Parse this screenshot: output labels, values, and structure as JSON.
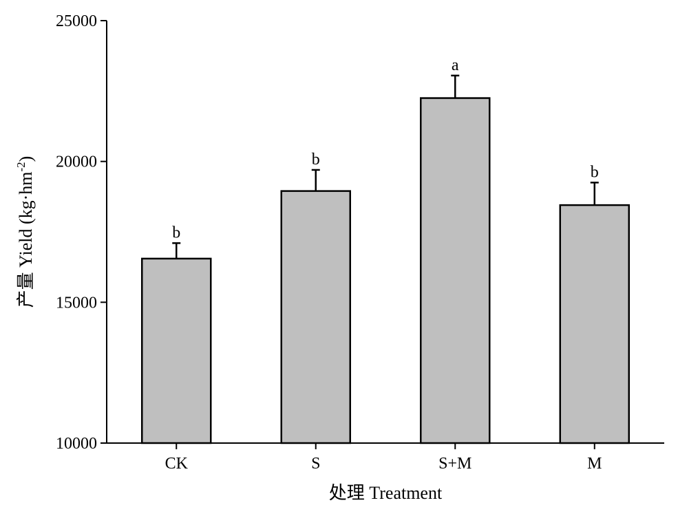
{
  "chart_data": {
    "type": "bar",
    "categories": [
      "CK",
      "S",
      "S+M",
      "M"
    ],
    "values": [
      16550,
      18950,
      22250,
      18450
    ],
    "errors": [
      550,
      750,
      800,
      800
    ],
    "significance": [
      "b",
      "b",
      "a",
      "b"
    ],
    "xlabel": "处理 Treatment",
    "ylabel_prefix": "产量 Yield (kg·hm",
    "ylabel_sup": "-2",
    "ylabel_suffix": ")",
    "ylim": [
      10000,
      25000
    ],
    "yticks": [
      10000,
      15000,
      20000,
      25000
    ],
    "grid": false,
    "bar_color": "#bfbfbf",
    "edge_color": "#000000"
  }
}
